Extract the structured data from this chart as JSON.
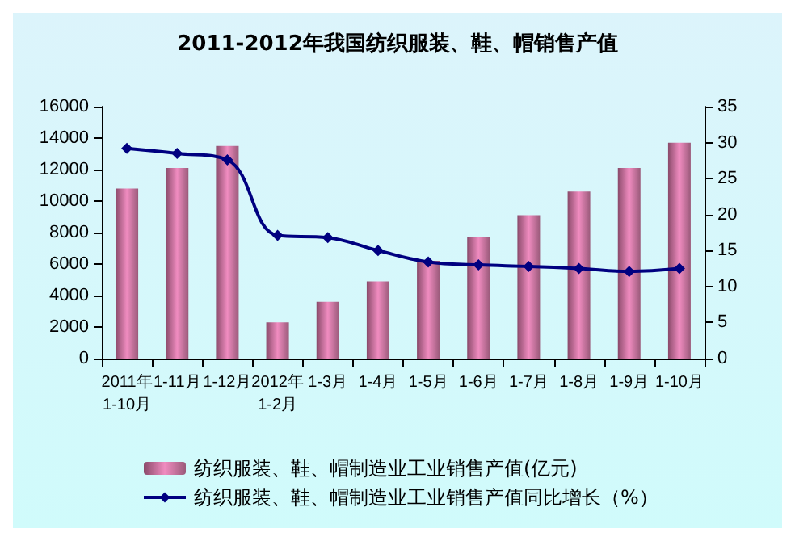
{
  "chart_data": {
    "type": "bar",
    "title": "2011-2012年我国纺织服装、鞋、帽销售产值",
    "categories": [
      "2011年\n1-10月",
      "1-11月",
      "1-12月",
      "2012年\n1-2月",
      "1-3月",
      "1-4月",
      "1-5月",
      "1-6月",
      "1-7月",
      "1-8月",
      "1-9月",
      "1-10月"
    ],
    "series": [
      {
        "name": "纺织服装、鞋、帽制造业工业销售产值(亿元)",
        "color": "#f08cc0",
        "values": [
          10800,
          12100,
          13500,
          2300,
          3600,
          4900,
          6200,
          7700,
          9100,
          10600,
          12100,
          13700
        ]
      },
      {
        "name": "纺织服装、鞋、帽制造业工业销售产值同比增长（%）",
        "type": "line",
        "axis": "y2",
        "color": "#000080",
        "marker": "diamond",
        "values": [
          29.2,
          28.5,
          27.6,
          17.1,
          16.8,
          15.0,
          13.4,
          13.0,
          12.8,
          12.5,
          12.1,
          12.5
        ]
      }
    ],
    "ylim": [
      0,
      16000
    ],
    "yticks": [
      0,
      2000,
      4000,
      6000,
      8000,
      10000,
      12000,
      14000,
      16000
    ],
    "y2lim": [
      0,
      35
    ],
    "y2ticks": [
      0,
      5,
      10,
      15,
      20,
      25,
      30,
      35
    ],
    "grid": false,
    "legend": "bottom"
  }
}
